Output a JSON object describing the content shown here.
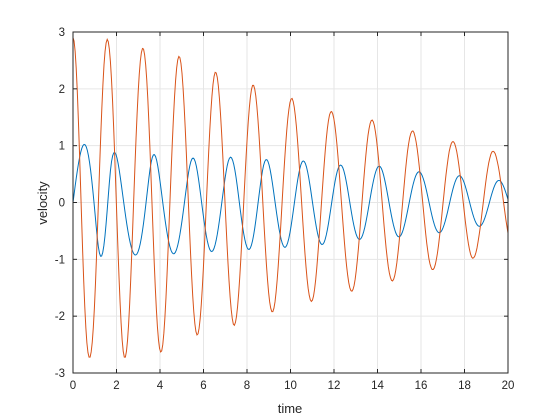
{
  "chart_data": {
    "type": "line",
    "title": "",
    "xlabel": "time",
    "ylabel": "velocity",
    "xlim": [
      0,
      20
    ],
    "ylim": [
      -3,
      3
    ],
    "xticks": [
      0,
      2,
      4,
      6,
      8,
      10,
      12,
      14,
      16,
      18,
      20
    ],
    "yticks": [
      -3,
      -2,
      -1,
      0,
      1,
      2,
      3
    ],
    "grid": true,
    "legend": "none",
    "x_step": 0.05,
    "series": [
      {
        "color": "#0072BD",
        "x_start": 0,
        "x_end": 20,
        "values": [
          0.0,
          0.149,
          0.295,
          0.436,
          0.568,
          0.689,
          0.795,
          0.884,
          0.953,
          1.0,
          1.021,
          1.015,
          0.981,
          0.918,
          0.827,
          0.709,
          0.566,
          0.4,
          0.215,
          0.015,
          -0.196,
          -0.41,
          -0.612,
          -0.775,
          -0.888,
          -0.945,
          -0.942,
          -0.88,
          -0.763,
          -0.594,
          -0.384,
          -0.148,
          0.102,
          0.347,
          0.562,
          0.72,
          0.822,
          0.873,
          0.879,
          0.846,
          0.778,
          0.684,
          0.568,
          0.437,
          0.297,
          0.153,
          0.009,
          -0.133,
          -0.27,
          -0.398,
          -0.516,
          -0.622,
          -0.714,
          -0.792,
          -0.853,
          -0.896,
          -0.92,
          -0.924,
          -0.908,
          -0.87,
          -0.811,
          -0.731,
          -0.63,
          -0.51,
          -0.373,
          -0.221,
          -0.058,
          0.111,
          0.281,
          0.445,
          0.592,
          0.711,
          0.794,
          0.838,
          0.842,
          0.808,
          0.739,
          0.64,
          0.517,
          0.378,
          0.229,
          0.077,
          -0.074,
          -0.221,
          -0.36,
          -0.488,
          -0.602,
          -0.7,
          -0.78,
          -0.841,
          -0.882,
          -0.901,
          -0.899,
          -0.875,
          -0.829,
          -0.762,
          -0.676,
          -0.571,
          -0.451,
          -0.319,
          -0.177,
          -0.029,
          0.121,
          0.27,
          0.411,
          0.536,
          0.64,
          0.718,
          0.766,
          0.782,
          0.766,
          0.718,
          0.64,
          0.536,
          0.411,
          0.27,
          0.121,
          -0.031,
          -0.181,
          -0.324,
          -0.457,
          -0.577,
          -0.678,
          -0.759,
          -0.818,
          -0.853,
          -0.863,
          -0.849,
          -0.81,
          -0.748,
          -0.665,
          -0.562,
          -0.443,
          -0.311,
          -0.169,
          -0.021,
          0.129,
          0.276,
          0.415,
          0.54,
          0.645,
          0.726,
          0.777,
          0.797,
          0.785,
          0.741,
          0.669,
          0.57,
          0.449,
          0.311,
          0.162,
          0.008,
          -0.144,
          -0.29,
          -0.425,
          -0.546,
          -0.649,
          -0.731,
          -0.789,
          -0.821,
          -0.826,
          -0.803,
          -0.752,
          -0.676,
          -0.575,
          -0.455,
          -0.318,
          -0.17,
          -0.015,
          0.14,
          0.29,
          0.43,
          0.551,
          0.648,
          0.716,
          0.751,
          0.754,
          0.724,
          0.664,
          0.578,
          0.471,
          0.348,
          0.214,
          0.074,
          -0.066,
          -0.203,
          -0.334,
          -0.453,
          -0.559,
          -0.648,
          -0.717,
          -0.764,
          -0.787,
          -0.785,
          -0.757,
          -0.704,
          -0.629,
          -0.532,
          -0.418,
          -0.29,
          -0.153,
          -0.011,
          0.13,
          0.267,
          0.394,
          0.506,
          0.599,
          0.668,
          0.713,
          0.731,
          0.722,
          0.687,
          0.626,
          0.544,
          0.443,
          0.327,
          0.2,
          0.066,
          -0.069,
          -0.2,
          -0.325,
          -0.438,
          -0.537,
          -0.619,
          -0.681,
          -0.722,
          -0.739,
          -0.732,
          -0.702,
          -0.647,
          -0.571,
          -0.477,
          -0.368,
          -0.247,
          -0.12,
          0.011,
          0.14,
          0.263,
          0.375,
          0.473,
          0.552,
          0.611,
          0.647,
          0.659,
          0.647,
          0.612,
          0.554,
          0.477,
          0.383,
          0.277,
          0.162,
          0.043,
          -0.077,
          -0.193,
          -0.302,
          -0.399,
          -0.484,
          -0.553,
          -0.604,
          -0.637,
          -0.651,
          -0.644,
          -0.618,
          -0.573,
          -0.511,
          -0.433,
          -0.342,
          -0.241,
          -0.133,
          -0.021,
          0.092,
          0.202,
          0.305,
          0.399,
          0.481,
          0.548,
          0.598,
          0.629,
          0.64,
          0.63,
          0.6,
          0.551,
          0.484,
          0.403,
          0.31,
          0.209,
          0.103,
          -0.005,
          -0.112,
          -0.215,
          -0.31,
          -0.396,
          -0.469,
          -0.528,
          -0.571,
          -0.597,
          -0.605,
          -0.596,
          -0.569,
          -0.526,
          -0.468,
          -0.397,
          -0.315,
          -0.225,
          -0.13,
          -0.032,
          0.066,
          0.161,
          0.25,
          0.331,
          0.401,
          0.458,
          0.501,
          0.529,
          0.54,
          0.535,
          0.513,
          0.476,
          0.425,
          0.362,
          0.288,
          0.206,
          0.119,
          0.029,
          -0.062,
          -0.151,
          -0.235,
          -0.312,
          -0.381,
          -0.438,
          -0.483,
          -0.514,
          -0.53,
          -0.531,
          -0.517,
          -0.488,
          -0.446,
          -0.392,
          -0.327,
          -0.254,
          -0.175,
          -0.091,
          -0.006,
          0.079,
          0.161,
          0.238,
          0.306,
          0.365,
          0.412,
          0.446,
          0.466,
          0.472,
          0.463,
          0.44,
          0.405,
          0.358,
          0.301,
          0.236,
          0.166,
          0.091,
          0.015,
          -0.061,
          -0.134,
          -0.202,
          -0.264,
          -0.317,
          -0.36,
          -0.392,
          -0.412,
          -0.419,
          -0.413,
          -0.394,
          -0.364,
          -0.323,
          -0.272,
          -0.213,
          -0.148,
          -0.079,
          -0.008,
          0.063,
          0.132,
          0.196,
          0.254,
          0.303,
          0.342,
          0.37,
          0.386,
          0.388,
          0.379,
          0.357,
          0.324,
          0.282,
          0.232,
          0.176,
          0.117,
          0.055
        ]
      },
      {
        "color": "#D95319",
        "x_start": 0,
        "x_end": 20,
        "values": [
          2.9,
          2.84,
          2.66,
          2.36,
          1.96,
          1.47,
          0.92,
          0.34,
          -0.26,
          -0.84,
          -1.37,
          -1.83,
          -2.2,
          -2.47,
          -2.64,
          -2.72,
          -2.72,
          -2.63,
          -2.46,
          -2.2,
          -1.86,
          -1.44,
          -0.95,
          -0.42,
          0.13,
          0.68,
          1.2,
          1.67,
          2.08,
          2.42,
          2.66,
          2.81,
          2.87,
          2.83,
          2.7,
          2.48,
          2.17,
          1.79,
          1.34,
          0.84,
          0.3,
          -0.25,
          -0.79,
          -1.29,
          -1.74,
          -2.12,
          -2.42,
          -2.62,
          -2.72,
          -2.72,
          -2.62,
          -2.43,
          -2.15,
          -1.79,
          -1.36,
          -0.88,
          -0.37,
          0.15,
          0.66,
          1.14,
          1.57,
          1.95,
          2.26,
          2.49,
          2.64,
          2.71,
          2.7,
          2.6,
          2.42,
          2.16,
          1.82,
          1.41,
          0.95,
          0.45,
          -0.06,
          -0.57,
          -1.06,
          -1.5,
          -1.88,
          -2.19,
          -2.42,
          -2.57,
          -2.63,
          -2.61,
          -2.5,
          -2.3,
          -2.02,
          -1.67,
          -1.26,
          -0.81,
          -0.33,
          0.16,
          0.64,
          1.09,
          1.5,
          1.86,
          2.15,
          2.37,
          2.51,
          2.57,
          2.55,
          2.45,
          2.27,
          2.01,
          1.69,
          1.31,
          0.89,
          0.44,
          -0.02,
          -0.47,
          -0.9,
          -1.29,
          -1.64,
          -1.92,
          -2.13,
          -2.27,
          -2.33,
          -2.31,
          -2.21,
          -2.04,
          -1.8,
          -1.5,
          -1.15,
          -0.76,
          -0.34,
          0.09,
          0.51,
          0.91,
          1.28,
          1.6,
          1.87,
          2.08,
          2.22,
          2.29,
          2.28,
          2.2,
          2.05,
          1.83,
          1.56,
          1.24,
          0.88,
          0.49,
          0.09,
          -0.31,
          -0.7,
          -1.06,
          -1.38,
          -1.66,
          -1.88,
          -2.04,
          -2.14,
          -2.16,
          -2.11,
          -2.0,
          -1.83,
          -1.6,
          -1.32,
          -1.0,
          -0.65,
          -0.28,
          0.1,
          0.47,
          0.82,
          1.14,
          1.43,
          1.67,
          1.86,
          1.99,
          2.06,
          2.06,
          2.0,
          1.88,
          1.7,
          1.47,
          1.2,
          0.89,
          0.56,
          0.21,
          -0.14,
          -0.48,
          -0.8,
          -1.1,
          -1.36,
          -1.58,
          -1.75,
          -1.86,
          -1.92,
          -1.92,
          -1.86,
          -1.75,
          -1.58,
          -1.37,
          -1.12,
          -0.83,
          -0.53,
          -0.21,
          0.12,
          0.44,
          0.74,
          1.02,
          1.27,
          1.48,
          1.64,
          1.76,
          1.82,
          1.83,
          1.78,
          1.68,
          1.53,
          1.34,
          1.11,
          0.85,
          0.57,
          0.27,
          -0.03,
          -0.33,
          -0.62,
          -0.89,
          -1.13,
          -1.34,
          -1.51,
          -1.63,
          -1.71,
          -1.74,
          -1.72,
          -1.65,
          -1.53,
          -1.37,
          -1.17,
          -0.94,
          -0.69,
          -0.42,
          -0.14,
          0.14,
          0.41,
          0.67,
          0.91,
          1.12,
          1.3,
          1.44,
          1.54,
          1.59,
          1.6,
          1.56,
          1.48,
          1.36,
          1.2,
          1.01,
          0.79,
          0.55,
          0.3,
          0.04,
          -0.22,
          -0.47,
          -0.71,
          -0.93,
          -1.12,
          -1.28,
          -1.41,
          -1.5,
          -1.55,
          -1.56,
          -1.53,
          -1.46,
          -1.35,
          -1.2,
          -1.02,
          -0.82,
          -0.59,
          -0.35,
          -0.1,
          0.15,
          0.39,
          0.62,
          0.83,
          1.02,
          1.18,
          1.3,
          1.39,
          1.44,
          1.45,
          1.42,
          1.35,
          1.24,
          1.1,
          0.93,
          0.74,
          0.52,
          0.3,
          0.06,
          -0.17,
          -0.4,
          -0.61,
          -0.81,
          -0.98,
          -1.13,
          -1.24,
          -1.32,
          -1.37,
          -1.38,
          -1.35,
          -1.29,
          -1.19,
          -1.06,
          -0.9,
          -0.72,
          -0.52,
          -0.31,
          -0.09,
          0.13,
          0.34,
          0.55,
          0.73,
          0.9,
          1.03,
          1.14,
          1.21,
          1.25,
          1.26,
          1.23,
          1.16,
          1.07,
          0.95,
          0.8,
          0.63,
          0.44,
          0.24,
          0.04,
          -0.16,
          -0.36,
          -0.55,
          -0.72,
          -0.86,
          -0.99,
          -1.08,
          -1.14,
          -1.18,
          -1.18,
          -1.15,
          -1.09,
          -1.0,
          -0.89,
          -0.75,
          -0.59,
          -0.42,
          -0.24,
          -0.05,
          0.13,
          0.32,
          0.49,
          0.64,
          0.78,
          0.9,
          0.98,
          1.04,
          1.07,
          1.07,
          1.04,
          0.98,
          0.9,
          0.79,
          0.66,
          0.52,
          0.36,
          0.19,
          0.02,
          -0.15,
          -0.32,
          -0.47,
          -0.61,
          -0.73,
          -0.83,
          -0.91,
          -0.96,
          -0.98,
          -0.97,
          -0.94,
          -0.88,
          -0.8,
          -0.69,
          -0.57,
          -0.44,
          -0.29,
          -0.13,
          0.02,
          0.18,
          0.33,
          0.47,
          0.59,
          0.7,
          0.78,
          0.85,
          0.89,
          0.9,
          0.89,
          0.86,
          0.8,
          0.72,
          0.63,
          0.52,
          0.39,
          0.26,
          0.12,
          -0.02,
          -0.16,
          -0.3,
          -0.42,
          -0.54
        ]
      }
    ]
  }
}
